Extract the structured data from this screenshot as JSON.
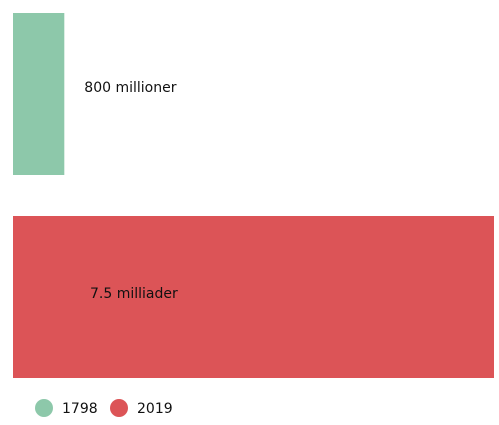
{
  "chart_data": {
    "type": "bar",
    "series": [
      {
        "name": "1798",
        "color": "#8dc8aa",
        "values": [
          800000000
        ],
        "value_labels": [
          "800 millioner"
        ]
      },
      {
        "name": "2019",
        "color": "#dc5457",
        "values": [
          7500000000
        ],
        "value_labels": [
          "7.5 milliader"
        ]
      }
    ],
    "legend": "bottom-left"
  }
}
